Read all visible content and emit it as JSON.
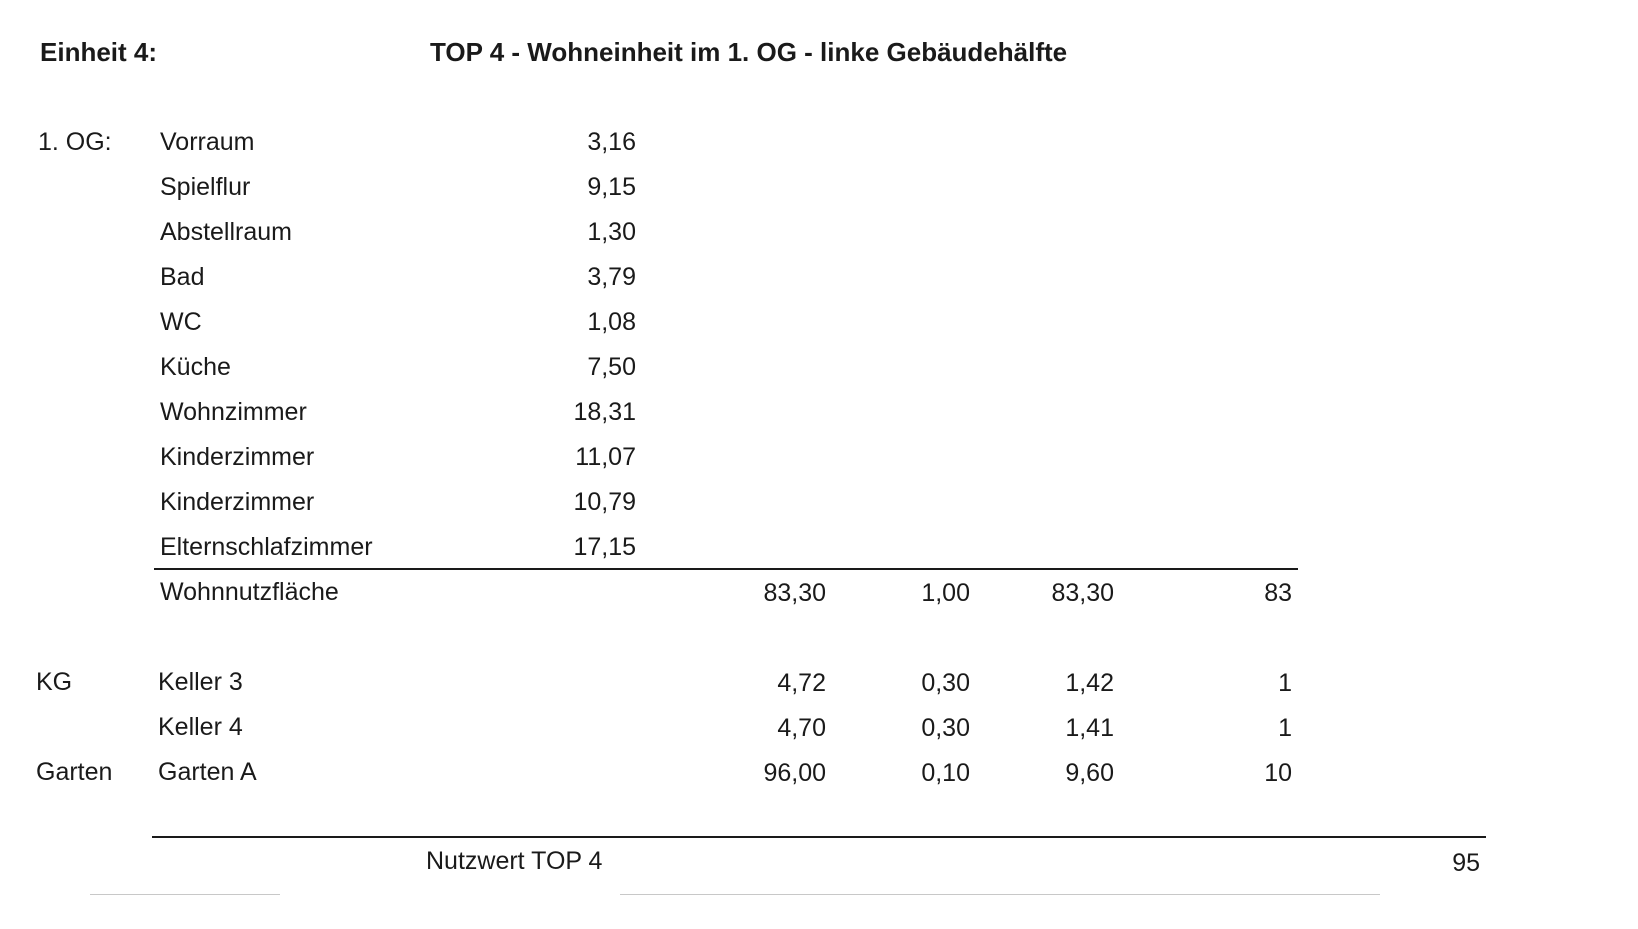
{
  "header": {
    "unit_label": "Einheit 4:",
    "title": "TOP 4 - Wohneinheit im 1. OG - linke Gebäudehälfte"
  },
  "og_section": {
    "floor_label": "1. OG:",
    "rooms": [
      {
        "name": "Vorraum",
        "area": "3,16"
      },
      {
        "name": "Spielflur",
        "area": "9,15"
      },
      {
        "name": "Abstellraum",
        "area": "1,30"
      },
      {
        "name": "Bad",
        "area": "3,79"
      },
      {
        "name": "WC",
        "area": "1,08"
      },
      {
        "name": "Küche",
        "area": "7,50"
      },
      {
        "name": "Wohnzimmer",
        "area": "18,31"
      },
      {
        "name": "Kinderzimmer",
        "area": "11,07"
      },
      {
        "name": "Kinderzimmer",
        "area": "10,79"
      },
      {
        "name": "Elternschlafzimmer",
        "area": "17,15"
      }
    ],
    "summary": {
      "label": "Wohnnutzfläche",
      "area": "83,30",
      "factor": "1,00",
      "weighted": "83,30",
      "value": "83"
    }
  },
  "extras": [
    {
      "floor": "KG",
      "name": "Keller 3",
      "area": "4,72",
      "factor": "0,30",
      "weighted": "1,42",
      "value": "1"
    },
    {
      "floor": "",
      "name": "Keller 4",
      "area": "4,70",
      "factor": "0,30",
      "weighted": "1,41",
      "value": "1"
    },
    {
      "floor": "Garten",
      "name": "Garten A",
      "area": "96,00",
      "factor": "0,10",
      "weighted": "9,60",
      "value": "10"
    }
  ],
  "total": {
    "label": "Nutzwert TOP 4",
    "value": "95"
  }
}
